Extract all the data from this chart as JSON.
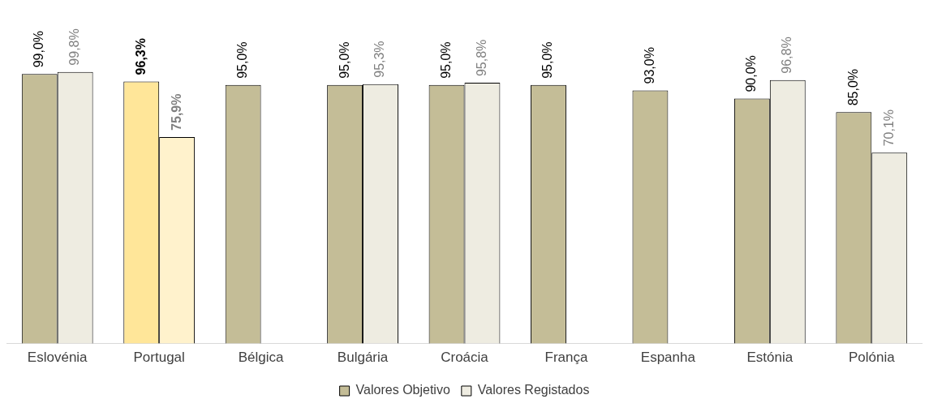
{
  "chart_data": {
    "type": "bar",
    "categories": [
      "Eslovénia",
      "Portugal",
      "Bélgica",
      "Bulgária",
      "Croácia",
      "França",
      "Espanha",
      "Estónia",
      "Polónia"
    ],
    "series": [
      {
        "name": "Valores Objetivo",
        "color": "#c4bd97",
        "colors": [
          "#c4bd97",
          "#ffe699",
          "#c4bd97",
          "#c4bd97",
          "#c4bd97",
          "#c4bd97",
          "#c4bd97",
          "#c4bd97",
          "#c4bd97"
        ],
        "values": [
          99.0,
          96.3,
          95.0,
          95.0,
          95.0,
          95.0,
          93.0,
          90.0,
          85.0
        ],
        "value_labels": [
          "99,0%",
          "96,3%",
          "95,0%",
          "95,0%",
          "95,0%",
          "95,0%",
          "93,0%",
          "90,0%",
          "85,0%"
        ]
      },
      {
        "name": "Valores Registados",
        "color": "#eeece1",
        "colors": [
          "#eeece1",
          "#fff2cc",
          "#eeece1",
          "#eeece1",
          "#eeece1",
          "#eeece1",
          "#eeece1",
          "#eeece1",
          "#eeece1"
        ],
        "values": [
          99.8,
          75.9,
          null,
          95.3,
          95.8,
          null,
          null,
          96.8,
          70.1
        ],
        "value_labels": [
          "99,8%",
          "75,9%",
          null,
          "95,3%",
          "95,8%",
          null,
          null,
          "96,8%",
          "70,1%"
        ]
      }
    ],
    "legend": "bottom"
  }
}
